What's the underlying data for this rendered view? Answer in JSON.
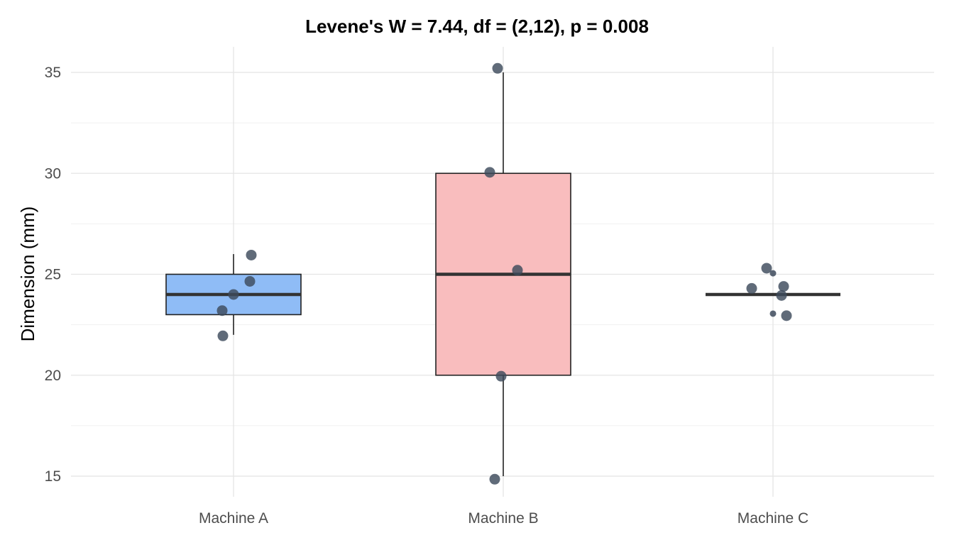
{
  "chart_data": {
    "type": "boxplot",
    "title": "Levene's W = 7.44, df = (2,12), p = 0.008",
    "xlabel": "",
    "ylabel": "Dimension (mm)",
    "ylim": [
      14,
      36.2
    ],
    "yticks": [
      15,
      20,
      25,
      30,
      35
    ],
    "grid": true,
    "categories": [
      "Machine A",
      "Machine B",
      "Machine C"
    ],
    "boxes": [
      {
        "category": "Machine A",
        "min": 22,
        "q1": 23,
        "median": 24,
        "q3": 25,
        "max": 26,
        "fill": "#8fbcf6"
      },
      {
        "category": "Machine B",
        "min": 15,
        "q1": 20,
        "median": 25,
        "q3": 30,
        "max": 35,
        "fill": "#f9bdbe"
      },
      {
        "category": "Machine C",
        "min": 24,
        "q1": 24,
        "median": 24,
        "q3": 24,
        "max": 24,
        "fill": "#cccccc"
      }
    ],
    "points": [
      {
        "category": "Machine A",
        "values": [
          21.95,
          23.2,
          24.0,
          24.65,
          25.95
        ]
      },
      {
        "category": "Machine B",
        "values": [
          14.85,
          19.95,
          25.2,
          30.05,
          35.2
        ]
      },
      {
        "category": "Machine C",
        "values": [
          22.95,
          23.95,
          24.3,
          24.4,
          25.3
        ]
      }
    ],
    "outliers": [
      {
        "category": "Machine C",
        "values": [
          23.05,
          25.05
        ]
      }
    ]
  },
  "colors": {
    "point": "#3d4a5c",
    "grid_major": "#e4e4e4",
    "grid_minor": "#f1f1f1",
    "box_stroke": "#222222",
    "median": "#333333"
  }
}
